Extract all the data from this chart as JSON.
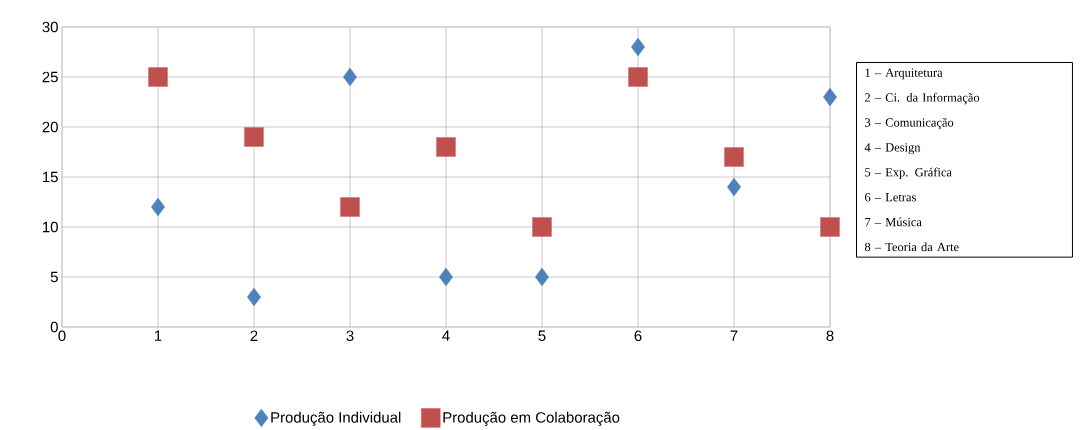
{
  "chart_data": {
    "type": "scatter",
    "x": [
      1,
      2,
      3,
      4,
      5,
      6,
      7,
      8
    ],
    "series": [
      {
        "name": "Produção Individual",
        "color": "#4f81bd",
        "marker": "diamond",
        "values": [
          12,
          3,
          25,
          5,
          5,
          28,
          14,
          23
        ]
      },
      {
        "name": "Produção em Colaboração",
        "color": "#c0504d",
        "marker": "square",
        "values": [
          25,
          19,
          12,
          18,
          10,
          25,
          17,
          10
        ]
      }
    ],
    "xlim": [
      0,
      8
    ],
    "ylim": [
      0,
      30
    ],
    "xticks": [
      0,
      1,
      2,
      3,
      4,
      5,
      6,
      7,
      8
    ],
    "yticks": [
      0,
      5,
      10,
      15,
      20,
      25,
      30
    ],
    "grid": true,
    "legend": "bottom",
    "annotations": [
      "1 – Arquitetura",
      "2 – Ci. da Informação",
      "3 – Comunicação",
      "4 – Design",
      "5 – Exp. Gráfica",
      "6 – Letras",
      "7 – Música",
      "8 – Teoria da Arte"
    ]
  }
}
